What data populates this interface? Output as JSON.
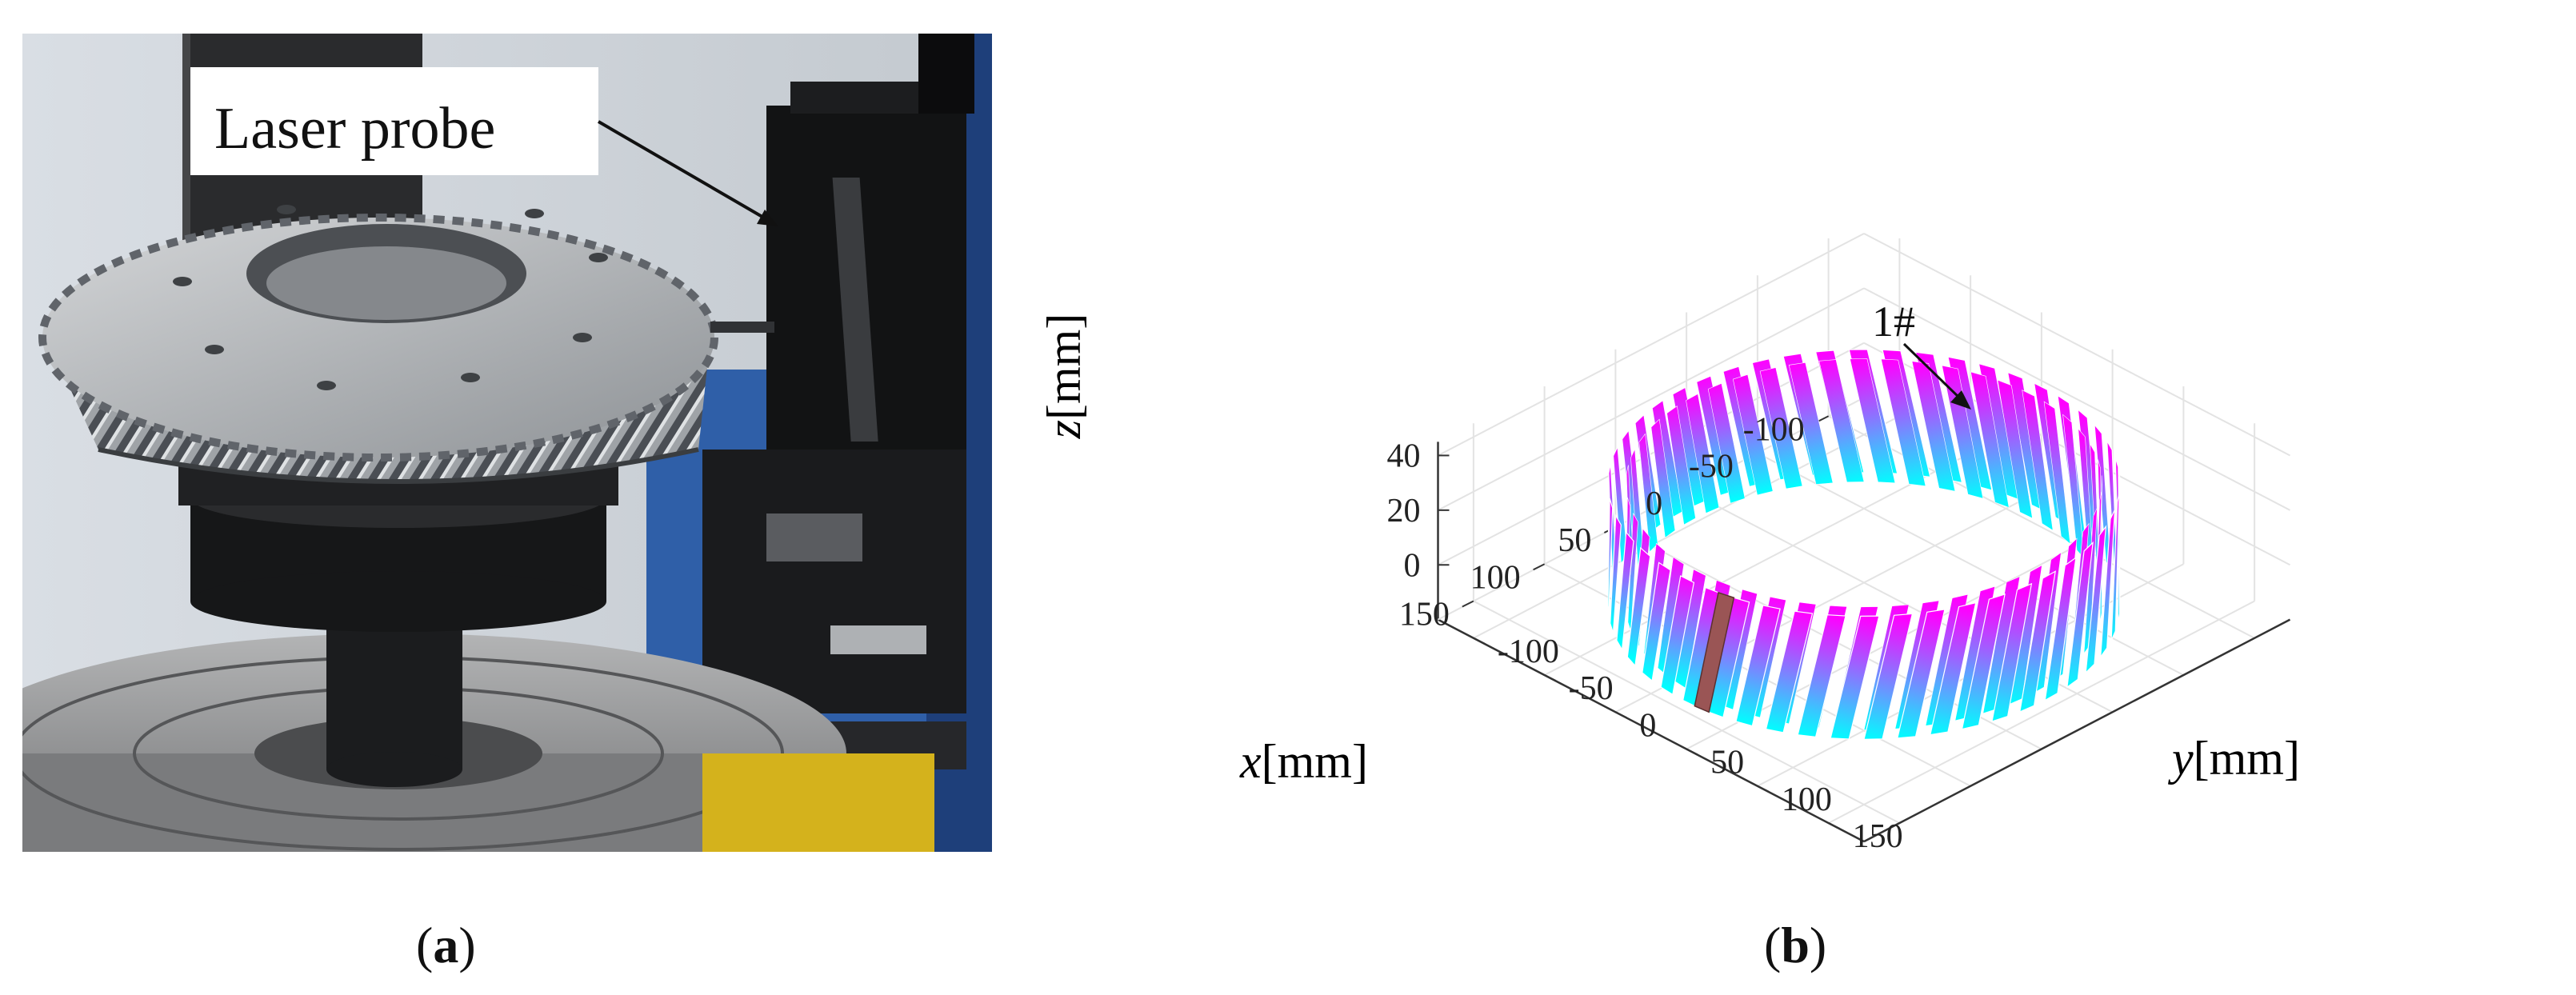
{
  "figure": {
    "panel_a": {
      "caption_open": "(",
      "caption_letter": "a",
      "caption_close": ")",
      "callout_label": "Laser probe"
    },
    "panel_b": {
      "caption_open": "(",
      "caption_letter": "b",
      "caption_close": ")",
      "annotation": "1#"
    }
  },
  "chart_data": {
    "type": "3d-surface",
    "xlabel_var": "x",
    "xlabel_unit": "[mm]",
    "ylabel_var": "y",
    "ylabel_unit": "[mm]",
    "zlabel_var": "z",
    "zlabel_unit": "[mm]",
    "x_ticks": [
      150,
      100,
      50,
      0,
      -50,
      -100
    ],
    "y_ticks": [
      -100,
      -50,
      0,
      50,
      100,
      150
    ],
    "z_ticks": [
      0,
      20,
      40
    ],
    "xlim": [
      -125,
      175
    ],
    "ylim": [
      -125,
      175
    ],
    "zlim": [
      -20,
      45
    ],
    "grid": true,
    "gear": {
      "outer_radius_mm": 150,
      "face_width_mm": 45,
      "z_range_mm": [
        -15,
        30
      ],
      "teeth_count": 48,
      "colormap": [
        "#00ffff",
        "#ff00ff"
      ],
      "highlighted_tooth": "1#",
      "highlight_color": "#9a5555"
    }
  }
}
